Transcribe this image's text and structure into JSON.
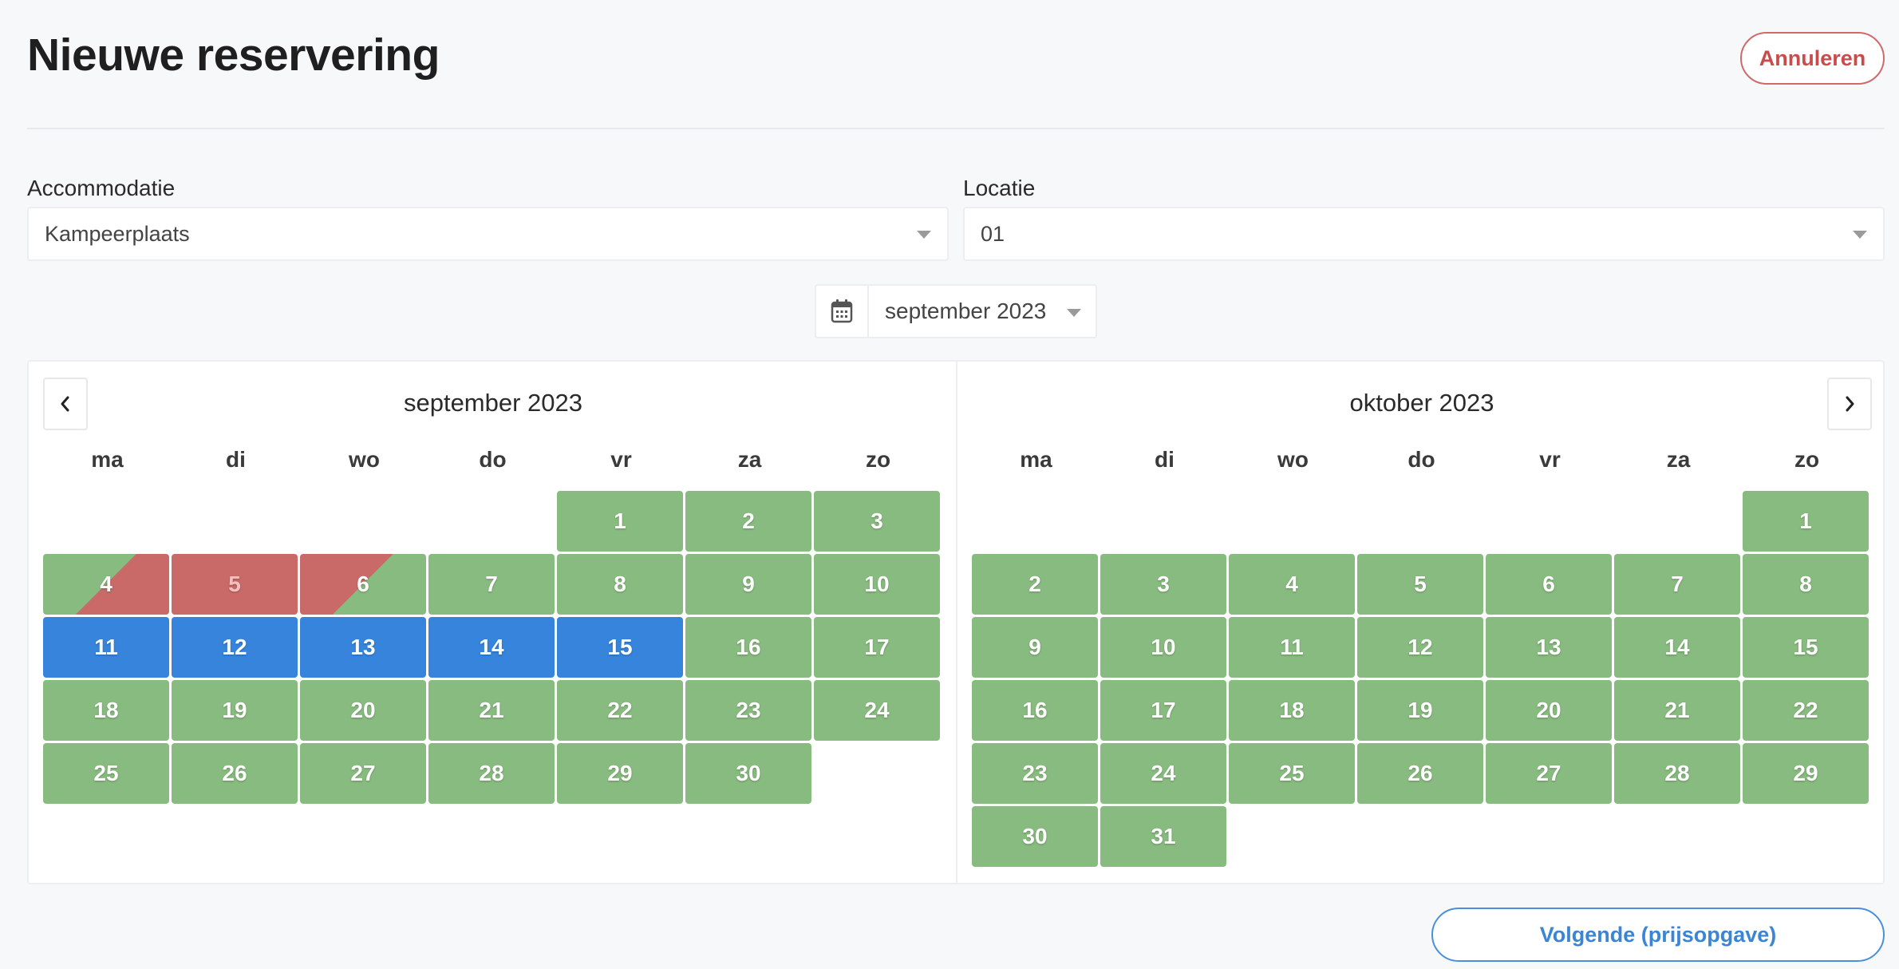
{
  "header": {
    "title": "Nieuwe reservering",
    "cancel_label": "Annuleren"
  },
  "form": {
    "accommodation": {
      "label": "Accommodatie",
      "value": "Kampeerplaats"
    },
    "location": {
      "label": "Locatie",
      "value": "01"
    }
  },
  "month_picker": {
    "value": "september 2023",
    "icon": "calendar-icon"
  },
  "weekdays": [
    "ma",
    "di",
    "wo",
    "do",
    "vr",
    "za",
    "zo"
  ],
  "months": [
    {
      "title": "september 2023",
      "first_weekday_index": 4,
      "days": [
        {
          "n": "1",
          "s": "free"
        },
        {
          "n": "2",
          "s": "free"
        },
        {
          "n": "3",
          "s": "free"
        },
        {
          "n": "4",
          "s": "check-in-booked"
        },
        {
          "n": "5",
          "s": "booked"
        },
        {
          "n": "6",
          "s": "check-out-booked"
        },
        {
          "n": "7",
          "s": "free"
        },
        {
          "n": "8",
          "s": "free"
        },
        {
          "n": "9",
          "s": "free"
        },
        {
          "n": "10",
          "s": "free"
        },
        {
          "n": "11",
          "s": "selected"
        },
        {
          "n": "12",
          "s": "selected"
        },
        {
          "n": "13",
          "s": "selected"
        },
        {
          "n": "14",
          "s": "selected"
        },
        {
          "n": "15",
          "s": "selected"
        },
        {
          "n": "16",
          "s": "free"
        },
        {
          "n": "17",
          "s": "free"
        },
        {
          "n": "18",
          "s": "free"
        },
        {
          "n": "19",
          "s": "free"
        },
        {
          "n": "20",
          "s": "free"
        },
        {
          "n": "21",
          "s": "free"
        },
        {
          "n": "22",
          "s": "free"
        },
        {
          "n": "23",
          "s": "free"
        },
        {
          "n": "24",
          "s": "free"
        },
        {
          "n": "25",
          "s": "free"
        },
        {
          "n": "26",
          "s": "free"
        },
        {
          "n": "27",
          "s": "free"
        },
        {
          "n": "28",
          "s": "free"
        },
        {
          "n": "29",
          "s": "free"
        },
        {
          "n": "30",
          "s": "free"
        }
      ]
    },
    {
      "title": "oktober 2023",
      "first_weekday_index": 6,
      "days": [
        {
          "n": "1",
          "s": "free"
        },
        {
          "n": "2",
          "s": "free"
        },
        {
          "n": "3",
          "s": "free"
        },
        {
          "n": "4",
          "s": "free"
        },
        {
          "n": "5",
          "s": "free"
        },
        {
          "n": "6",
          "s": "free"
        },
        {
          "n": "7",
          "s": "free"
        },
        {
          "n": "8",
          "s": "free"
        },
        {
          "n": "9",
          "s": "free"
        },
        {
          "n": "10",
          "s": "free"
        },
        {
          "n": "11",
          "s": "free"
        },
        {
          "n": "12",
          "s": "free"
        },
        {
          "n": "13",
          "s": "free"
        },
        {
          "n": "14",
          "s": "free"
        },
        {
          "n": "15",
          "s": "free"
        },
        {
          "n": "16",
          "s": "free"
        },
        {
          "n": "17",
          "s": "free"
        },
        {
          "n": "18",
          "s": "free"
        },
        {
          "n": "19",
          "s": "free"
        },
        {
          "n": "20",
          "s": "free"
        },
        {
          "n": "21",
          "s": "free"
        },
        {
          "n": "22",
          "s": "free"
        },
        {
          "n": "23",
          "s": "free"
        },
        {
          "n": "24",
          "s": "free"
        },
        {
          "n": "25",
          "s": "free"
        },
        {
          "n": "26",
          "s": "free"
        },
        {
          "n": "27",
          "s": "free"
        },
        {
          "n": "28",
          "s": "free"
        },
        {
          "n": "29",
          "s": "free"
        },
        {
          "n": "30",
          "s": "free"
        },
        {
          "n": "31",
          "s": "free"
        }
      ]
    }
  ],
  "navigation": {
    "prev_icon": "chevron-left-icon",
    "next_icon": "chevron-right-icon"
  },
  "footer": {
    "next_label": "Volgende (prijsopgave)"
  },
  "colors": {
    "free": "#88bb7f",
    "selected": "#3784dc",
    "booked": "#c96a68",
    "cancel_accent": "#c94c4c",
    "next_accent": "#3a85d6"
  }
}
